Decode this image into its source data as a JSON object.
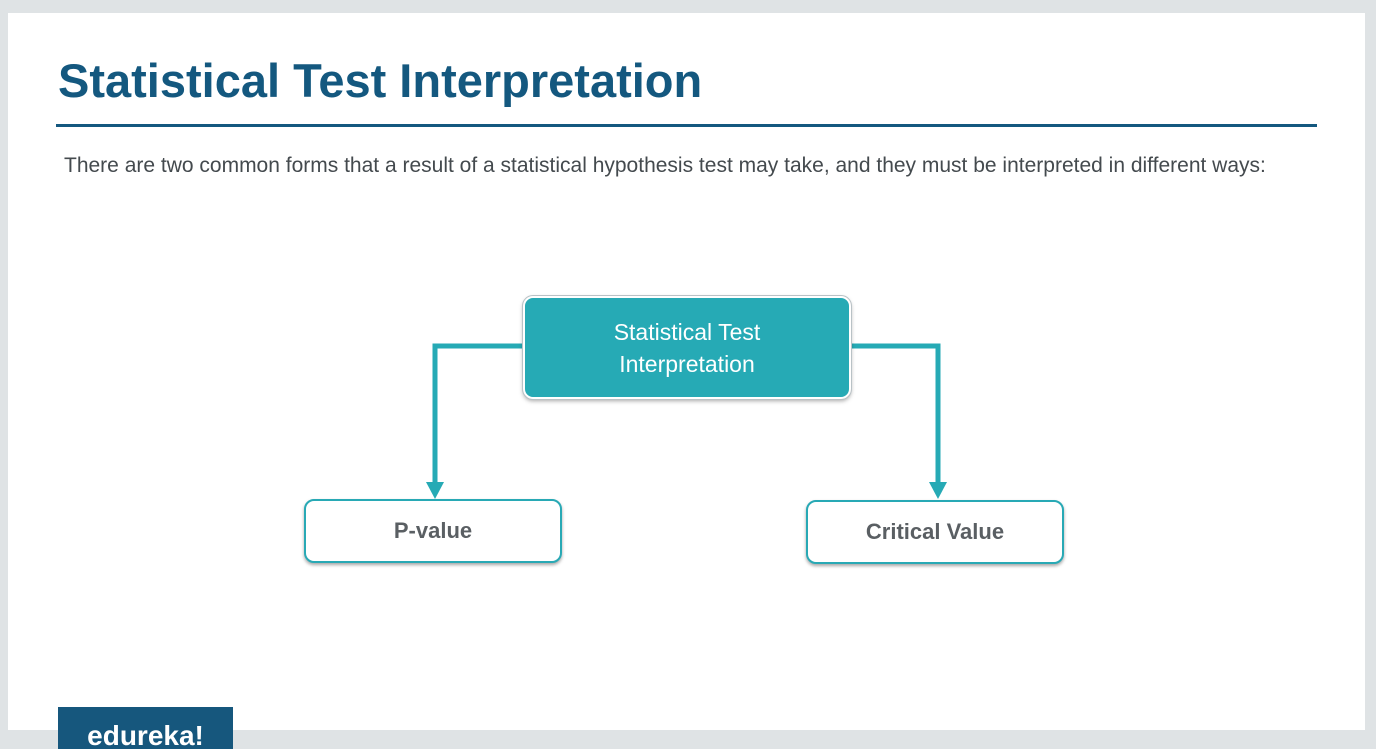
{
  "slide": {
    "title": "Statistical Test Interpretation",
    "body": "There are two common forms that a result of a statistical hypothesis test may take, and they must be interpreted in different ways:"
  },
  "diagram": {
    "root": "Statistical Test Interpretation",
    "children": [
      "P-value",
      "Critical Value"
    ],
    "accent_color": "#26aab5"
  },
  "brand": {
    "logo_text": "edureka!",
    "color": "#16577d"
  },
  "colors": {
    "title": "#14587f",
    "body_text": "#444a4e",
    "background": "#dfe3e5"
  }
}
